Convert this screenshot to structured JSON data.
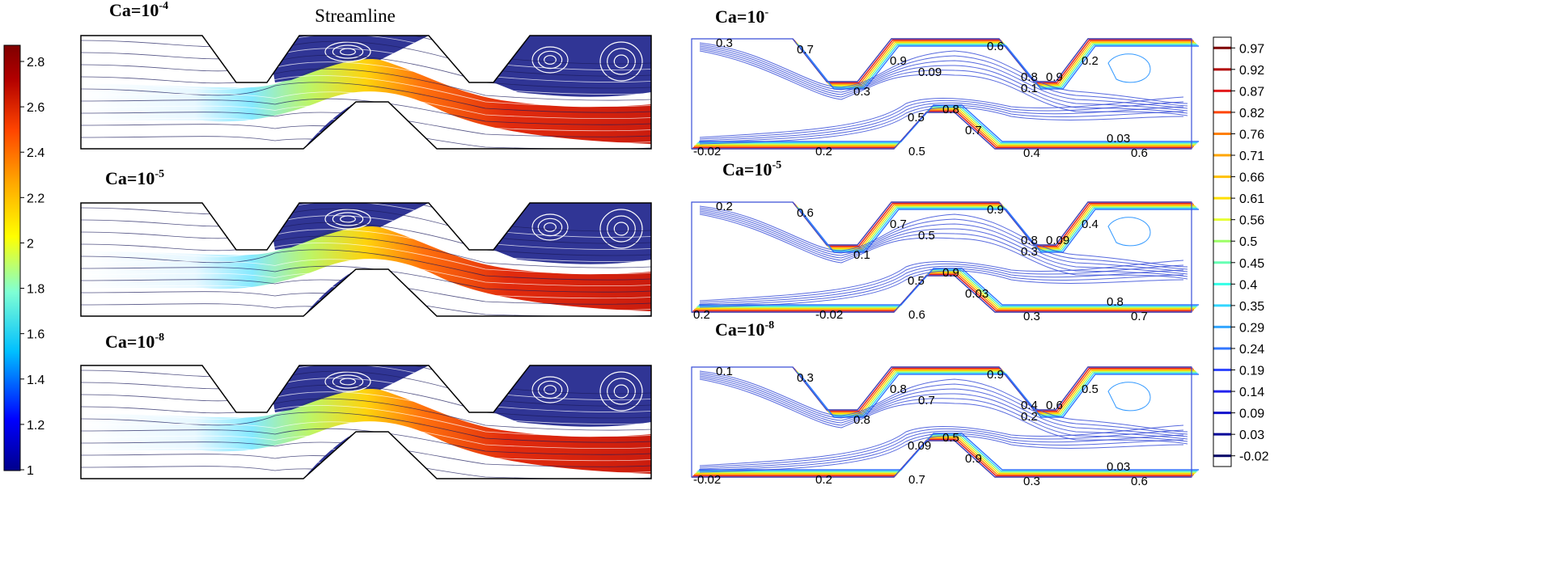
{
  "left_title": "Streamline",
  "right_title_fragment": "",
  "left_colorbar": {
    "ticks": [
      "2.8",
      "2.6",
      "2.4",
      "2.2",
      "2",
      "1.8",
      "1.6",
      "1.4",
      "1.2",
      "1"
    ],
    "colors": [
      "#00008b",
      "#0000ff",
      "#00bfff",
      "#7fffd4",
      "#ffff00",
      "#ffa500",
      "#ff4500",
      "#b20000",
      "#7f0000"
    ]
  },
  "right_colorbar": {
    "ticks": [
      "0.97",
      "0.92",
      "0.87",
      "0.82",
      "0.76",
      "0.71",
      "0.66",
      "0.61",
      "0.56",
      "0.5",
      "0.45",
      "0.4",
      "0.35",
      "0.29",
      "0.24",
      "0.19",
      "0.14",
      "0.09",
      "0.03",
      "-0.02"
    ],
    "colors": [
      "#7f0000",
      "#b20000",
      "#e31a1c",
      "#ff4500",
      "#ff7f00",
      "#ffa500",
      "#ffc000",
      "#ffdf00",
      "#e6ff33",
      "#9cff66",
      "#66ffb3",
      "#33ffe6",
      "#33d6ff",
      "#33a6ff",
      "#3377ff",
      "#3349ff",
      "#2222ee",
      "#1111cc",
      "#000099",
      "#000066"
    ]
  },
  "rows": [
    {
      "ca_base": "Ca=10",
      "ca_exp": "-4",
      "right_ca_base": "Ca=10",
      "right_ca_exp": "-",
      "contour_labels": [
        "0.3",
        "0.7",
        "0.9",
        "0.09",
        "0.3",
        "0.6",
        "0.8",
        "0.1",
        "0.9",
        "0.2",
        "0.5",
        "0.8",
        "0.7",
        "0.03",
        "-0.02",
        "0.2",
        "0.5",
        "0.4",
        "0.6"
      ]
    },
    {
      "ca_base": "Ca=10",
      "ca_exp": "-5",
      "right_ca_base": "Ca=10",
      "right_ca_exp": "-5",
      "contour_labels": [
        "0.2",
        "0.6",
        "0.7",
        "0.5",
        "0.1",
        "0.9",
        "0.8",
        "0.3",
        "0.09",
        "0.4",
        "0.5",
        "0.9",
        "0.03",
        "0.8",
        "0.2",
        "-0.02",
        "0.6",
        "0.3",
        "0.7"
      ]
    },
    {
      "ca_base": "Ca=10",
      "ca_exp": "-8",
      "right_ca_base": "Ca=10",
      "right_ca_exp": "-8",
      "contour_labels": [
        "0.1",
        "0.3",
        "0.8",
        "0.7",
        "0.8",
        "0.9",
        "0.4",
        "0.2",
        "0.6",
        "0.5",
        "0.09",
        "0.5",
        "0.9",
        "0.03",
        "-0.02",
        "0.2",
        "0.7",
        "0.3",
        "0.6"
      ]
    }
  ]
}
